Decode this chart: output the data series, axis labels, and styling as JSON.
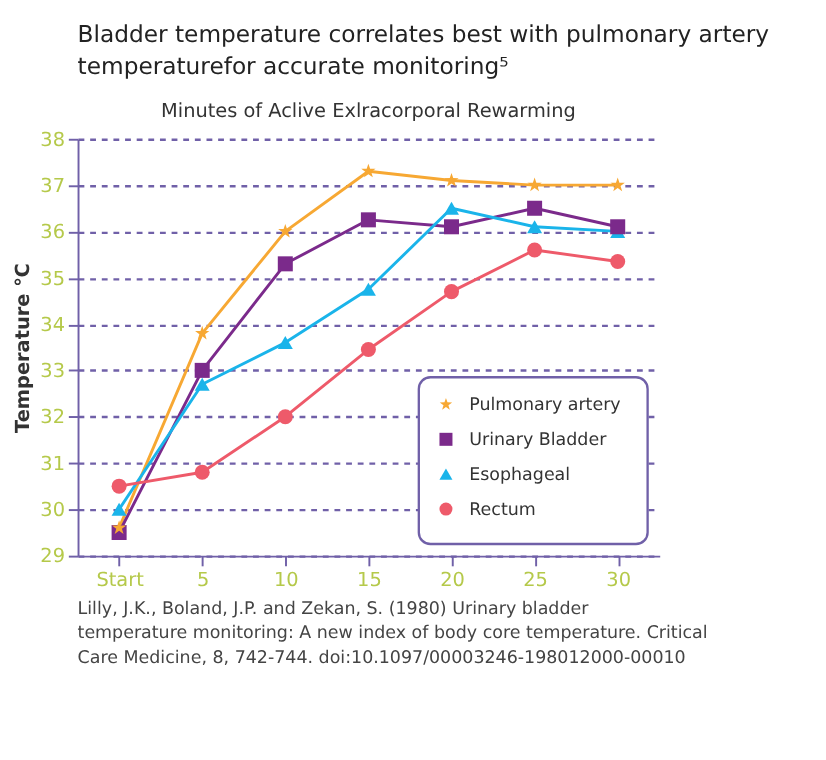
{
  "chart_data": {
    "type": "line",
    "title": "Bladder temperature correlates best with pulmonary artery temperaturefor accurate monitoring⁵",
    "subtitle": "Minutes of Aclive Exlracorporal Rewarming",
    "ylabel": "Temperature ℃",
    "categories": [
      "Start",
      "5",
      "10",
      "15",
      "20",
      "25",
      "30"
    ],
    "series": [
      {
        "name": "Pulmonary artery",
        "color": "#f7a833",
        "marker": "star",
        "values": [
          29.6,
          33.8,
          36.0,
          37.3,
          37.1,
          37.0,
          37.0
        ]
      },
      {
        "name": "Urinary Bladder",
        "color": "#7b2a8b",
        "marker": "square",
        "values": [
          29.5,
          33.0,
          35.3,
          36.25,
          36.1,
          36.5,
          36.1
        ]
      },
      {
        "name": "Esophageal",
        "color": "#1ab4ea",
        "marker": "triangle",
        "values": [
          30.0,
          32.7,
          33.6,
          34.75,
          36.5,
          36.1,
          36.0
        ]
      },
      {
        "name": "Rectum",
        "color": "#ee5a6a",
        "marker": "circle",
        "values": [
          30.5,
          30.8,
          32.0,
          33.45,
          34.7,
          35.6,
          35.35
        ]
      }
    ],
    "ylim": [
      29,
      38
    ],
    "yticks": [
      29,
      30,
      31,
      32,
      33,
      34,
      35,
      36,
      37,
      38
    ],
    "grid": "y",
    "legend": "bottom right",
    "annotations": [
      "Lilly, J.K., Boland, J.P. and Zekan, S. (1980) Urinary bladder temperature monitoring: A new index of body core temperature. Critical Care Medicine, 8, 742-744. doi:10.1097/00003246-198012000-00010"
    ]
  }
}
